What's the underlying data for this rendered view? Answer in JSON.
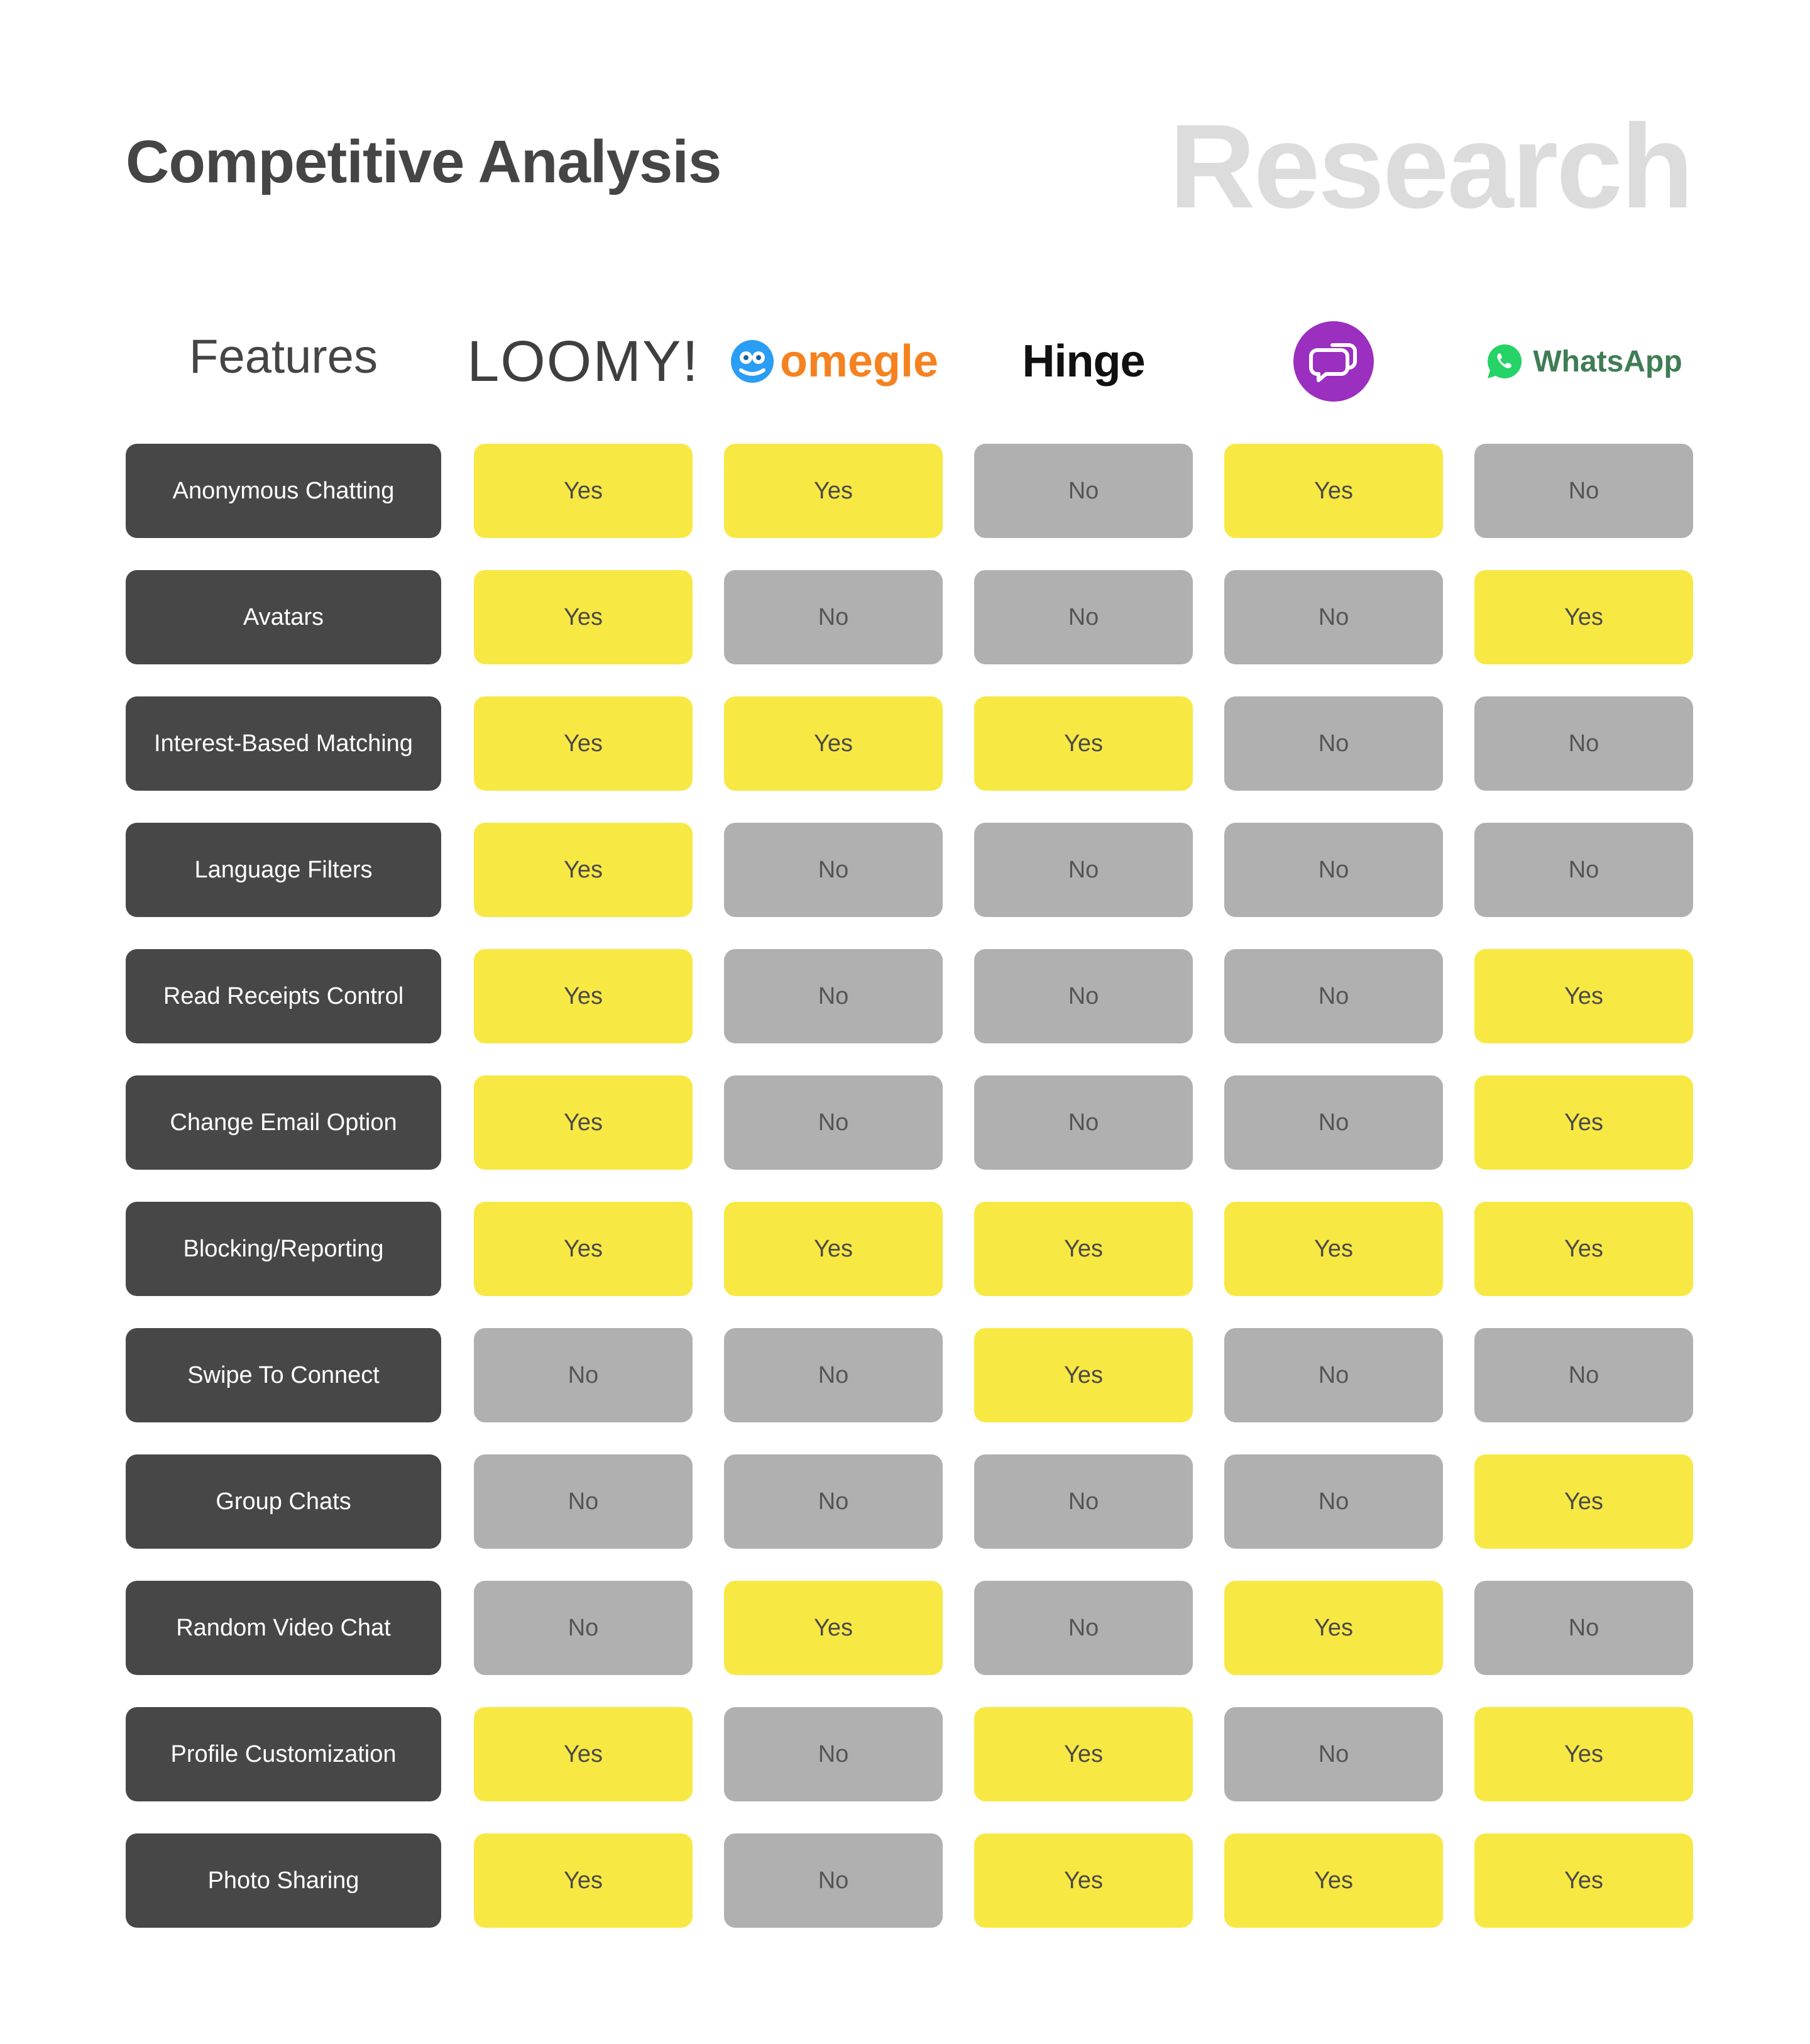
{
  "header": {
    "title": "Competitive Analysis",
    "watermark": "Research"
  },
  "table": {
    "feature_header": "Features",
    "brands": [
      {
        "name": "LOOMY!",
        "icon": "loomy-logo"
      },
      {
        "name": "omegle",
        "icon": "omegle-logo"
      },
      {
        "name": "Hinge",
        "icon": "hinge-logo"
      },
      {
        "name": "",
        "icon": "chat-bubbles-logo"
      },
      {
        "name": "WhatsApp",
        "icon": "whatsapp-logo"
      }
    ],
    "rows": [
      {
        "feature": "Anonymous Chatting",
        "values": [
          "Yes",
          "Yes",
          "No",
          "Yes",
          "No"
        ]
      },
      {
        "feature": "Avatars",
        "values": [
          "Yes",
          "No",
          "No",
          "No",
          "Yes"
        ]
      },
      {
        "feature": "Interest-Based Matching",
        "values": [
          "Yes",
          "Yes",
          "Yes",
          "No",
          "No"
        ]
      },
      {
        "feature": "Language Filters",
        "values": [
          "Yes",
          "No",
          "No",
          "No",
          "No"
        ]
      },
      {
        "feature": "Read Receipts Control",
        "values": [
          "Yes",
          "No",
          "No",
          "No",
          "Yes"
        ]
      },
      {
        "feature": "Change Email Option",
        "values": [
          "Yes",
          "No",
          "No",
          "No",
          "Yes"
        ]
      },
      {
        "feature": "Blocking/Reporting",
        "values": [
          "Yes",
          "Yes",
          "Yes",
          "Yes",
          "Yes"
        ]
      },
      {
        "feature": "Swipe To Connect",
        "values": [
          "No",
          "No",
          "Yes",
          "No",
          "No"
        ]
      },
      {
        "feature": "Group Chats",
        "values": [
          "No",
          "No",
          "No",
          "No",
          "Yes"
        ]
      },
      {
        "feature": "Random Video Chat",
        "values": [
          "No",
          "Yes",
          "No",
          "Yes",
          "No"
        ]
      },
      {
        "feature": "Profile Customization",
        "values": [
          "Yes",
          "No",
          "Yes",
          "No",
          "Yes"
        ]
      },
      {
        "feature": "Photo Sharing",
        "values": [
          "Yes",
          "No",
          "Yes",
          "Yes",
          "Yes"
        ]
      }
    ]
  },
  "colors": {
    "yes": "#f8e844",
    "no": "#b0b0b0",
    "feature": "#474747",
    "chat_logo": "#9b2fbf",
    "whatsapp_green": "#25d366",
    "omegle_blue": "#2a9df4",
    "omegle_orange": "#f5821f"
  }
}
